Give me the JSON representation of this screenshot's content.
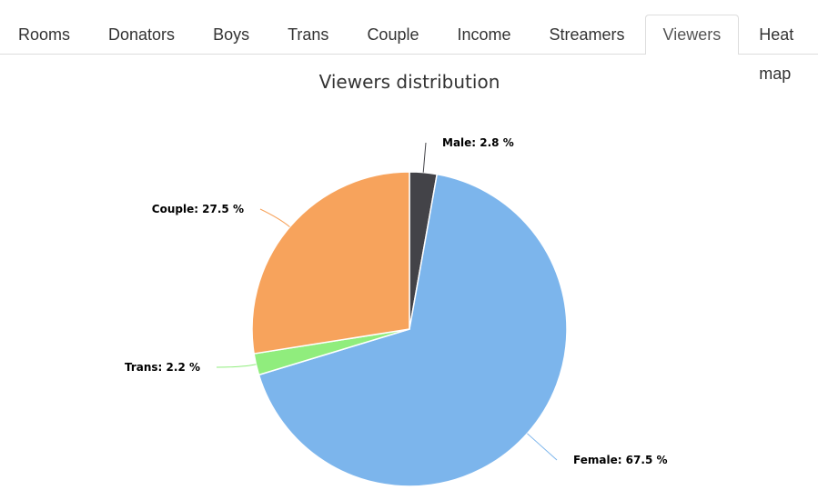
{
  "tabs": [
    {
      "label": "Rooms"
    },
    {
      "label": "Donators"
    },
    {
      "label": "Boys"
    },
    {
      "label": "Trans"
    },
    {
      "label": "Couple"
    },
    {
      "label": "Income"
    },
    {
      "label": "Streamers"
    },
    {
      "label": "Viewers",
      "selected": true
    },
    {
      "label": "Heat map"
    }
  ],
  "chart_data": {
    "type": "pie",
    "title": "Viewers distribution",
    "categories": [
      "Male",
      "Female",
      "Trans",
      "Couple"
    ],
    "values": [
      2.8,
      67.5,
      2.2,
      27.5
    ],
    "value_labels": [
      "Male: 2.8 %",
      "Female: 67.5 %",
      "Trans: 2.2 %",
      "Couple: 27.5 %"
    ],
    "colors": [
      "#434348",
      "#7cb5ec",
      "#90ed7d",
      "#f7a35c"
    ]
  }
}
